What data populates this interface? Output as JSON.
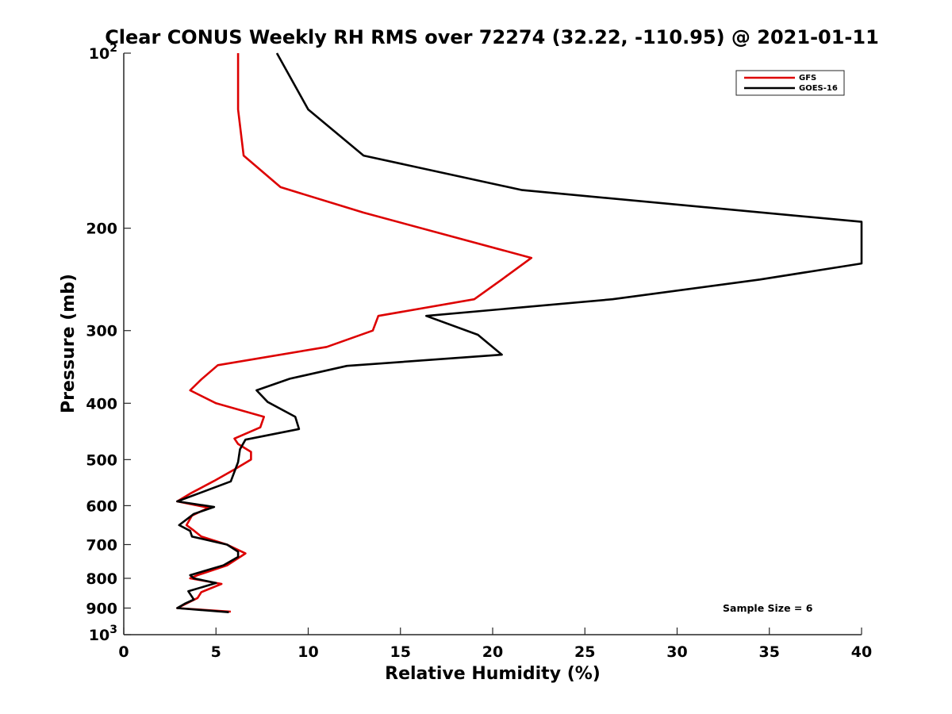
{
  "chart_data": {
    "type": "line",
    "title": "Clear CONUS Weekly RH RMS over 72274 (32.22, -110.95) @ 2021-01-11",
    "xlabel": "Relative Humidity (%)",
    "ylabel": "Pressure (mb)",
    "xlim": [
      0,
      40
    ],
    "ylim": [
      100,
      1000
    ],
    "y_scale": "log",
    "y_reversed": true,
    "grid": false,
    "legend_position": "top-right",
    "x_ticks": [
      0,
      5,
      10,
      15,
      20,
      25,
      30,
      35,
      40
    ],
    "x_tick_labels": [
      "0",
      "5",
      "10",
      "15",
      "20",
      "25",
      "30",
      "35",
      "40"
    ],
    "y_ticks": [
      100,
      200,
      300,
      400,
      500,
      600,
      700,
      800,
      900,
      1000
    ],
    "y_tick_labels": [
      {
        "base": "10",
        "exp": "2"
      },
      {
        "base": "200",
        "exp": ""
      },
      {
        "base": "300",
        "exp": ""
      },
      {
        "base": "400",
        "exp": ""
      },
      {
        "base": "500",
        "exp": ""
      },
      {
        "base": "600",
        "exp": ""
      },
      {
        "base": "700",
        "exp": ""
      },
      {
        "base": "800",
        "exp": ""
      },
      {
        "base": "900",
        "exp": ""
      },
      {
        "base": "10",
        "exp": "3"
      }
    ],
    "annotation": "Sample Size = 6",
    "series": [
      {
        "name": "GFS",
        "color": "#dd0000",
        "points": [
          [
            6.2,
            100
          ],
          [
            6.2,
            125
          ],
          [
            6.5,
            150
          ],
          [
            8.5,
            170
          ],
          [
            13,
            188
          ],
          [
            22.1,
            225
          ],
          [
            20.5,
            245
          ],
          [
            19,
            265
          ],
          [
            13.8,
            283
          ],
          [
            13.5,
            300
          ],
          [
            11,
            320
          ],
          [
            5.1,
            344
          ],
          [
            4.2,
            364
          ],
          [
            3.6,
            380
          ],
          [
            5,
            400
          ],
          [
            7.6,
            422
          ],
          [
            7.4,
            440
          ],
          [
            6,
            460
          ],
          [
            6.2,
            470
          ],
          [
            6.9,
            485
          ],
          [
            6.9,
            500
          ],
          [
            6,
            520
          ],
          [
            4.9,
            544
          ],
          [
            3.6,
            572
          ],
          [
            2.9,
            590
          ],
          [
            4.6,
            605
          ],
          [
            3.7,
            624
          ],
          [
            3.4,
            648
          ],
          [
            3.8,
            662
          ],
          [
            4.2,
            678
          ],
          [
            5.6,
            700
          ],
          [
            6.6,
            725
          ],
          [
            5.6,
            760
          ],
          [
            4,
            790
          ],
          [
            3.6,
            800
          ],
          [
            5.3,
            818
          ],
          [
            4.2,
            845
          ],
          [
            4,
            865
          ],
          [
            2.9,
            900
          ],
          [
            5.8,
            913
          ]
        ]
      },
      {
        "name": "GOES-16",
        "color": "#000000",
        "points": [
          [
            8.3,
            100
          ],
          [
            10,
            125
          ],
          [
            13,
            150
          ],
          [
            21.6,
            172
          ],
          [
            40,
            195
          ],
          [
            40,
            230
          ],
          [
            34.5,
            245
          ],
          [
            26.5,
            265
          ],
          [
            16.4,
            283
          ],
          [
            19.2,
            305
          ],
          [
            20.5,
            330
          ],
          [
            12.1,
            345
          ],
          [
            9,
            363
          ],
          [
            7.2,
            380
          ],
          [
            7.8,
            398
          ],
          [
            9.3,
            422
          ],
          [
            9.5,
            443
          ],
          [
            6.6,
            462
          ],
          [
            6.3,
            480
          ],
          [
            6.2,
            505
          ],
          [
            5.8,
            545
          ],
          [
            2.9,
            590
          ],
          [
            4.9,
            603
          ],
          [
            3.8,
            620
          ],
          [
            3,
            648
          ],
          [
            3.6,
            663
          ],
          [
            3.7,
            678
          ],
          [
            5.6,
            700
          ],
          [
            6.2,
            720
          ],
          [
            6.2,
            735
          ],
          [
            5.4,
            760
          ],
          [
            3.6,
            790
          ],
          [
            3.8,
            800
          ],
          [
            5,
            815
          ],
          [
            3.5,
            842
          ],
          [
            3.8,
            870
          ],
          [
            3.3,
            885
          ],
          [
            2.9,
            900
          ],
          [
            5.7,
            915
          ]
        ]
      }
    ]
  }
}
